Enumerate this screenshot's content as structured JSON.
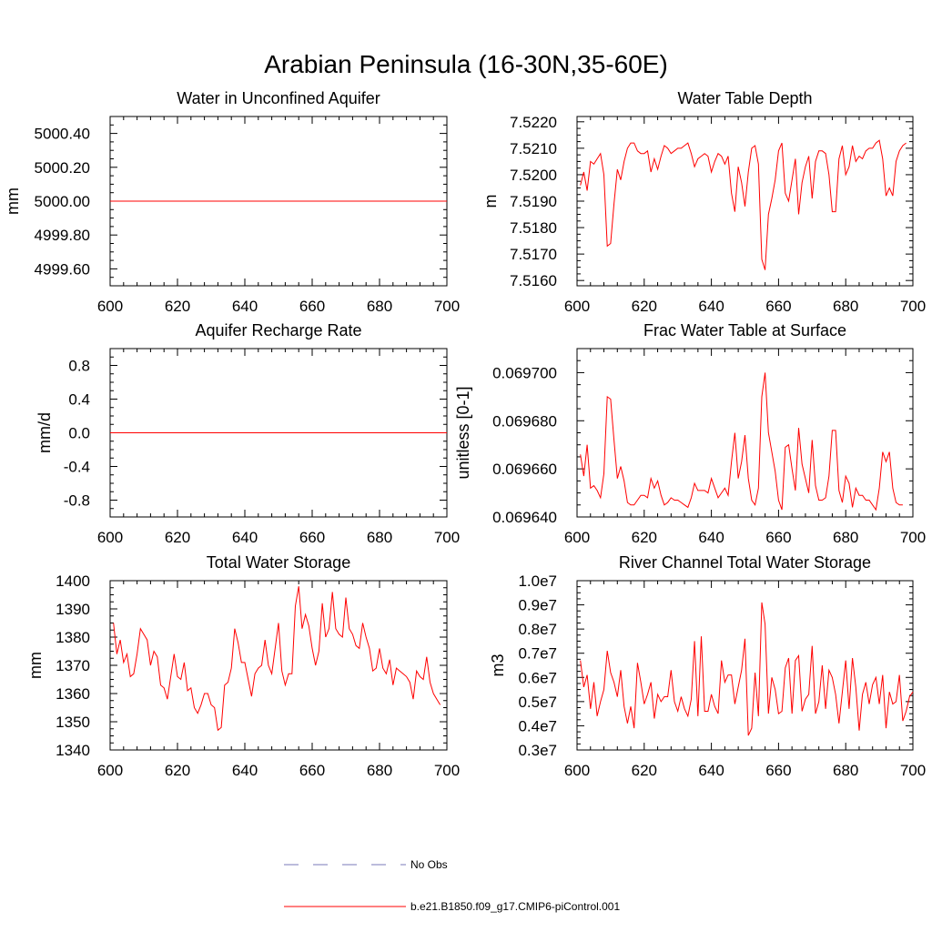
{
  "figure": {
    "title": "Arabian Peninsula (16-30N,35-60E)",
    "series_color": "#ff0000",
    "obs_color": "#7a7ab8"
  },
  "legend": {
    "items": [
      {
        "label": "No Obs",
        "style": "dashed",
        "color": "#7a7ab8"
      },
      {
        "label": "b.e21.B1850.f09_g17.CMIP6-piControl.001",
        "style": "solid",
        "color": "#ff0000"
      }
    ]
  },
  "chart_data": [
    {
      "type": "line",
      "title": "Water in Unconfined Aquifer",
      "xlabel": "",
      "ylabel": "mm",
      "xlim": [
        600,
        700
      ],
      "ylim": [
        4999.5,
        5000.5
      ],
      "xticks": [
        600,
        620,
        640,
        660,
        680,
        700
      ],
      "xtick_labels": [
        "600",
        "620",
        "640",
        "660",
        "680",
        "700"
      ],
      "yticks": [
        4999.6,
        4999.8,
        5000.0,
        5000.2,
        5000.4
      ],
      "ytick_labels": [
        "4999.60",
        "4999.80",
        "5000.00",
        "5000.20",
        "5000.40"
      ],
      "grid": false,
      "series": [
        {
          "name": "b.e21.B1850.f09_g17.CMIP6-piControl.001",
          "x": [
            600,
            700
          ],
          "values": [
            5000.0,
            5000.0
          ]
        }
      ]
    },
    {
      "type": "line",
      "title": "Water Table Depth",
      "xlabel": "",
      "ylabel": "m",
      "xlim": [
        600,
        700
      ],
      "ylim": [
        7.5158,
        7.5222
      ],
      "xticks": [
        600,
        620,
        640,
        660,
        680,
        700
      ],
      "xtick_labels": [
        "600",
        "620",
        "640",
        "660",
        "680",
        "700"
      ],
      "yticks": [
        7.516,
        7.517,
        7.518,
        7.519,
        7.52,
        7.521,
        7.522
      ],
      "ytick_labels": [
        "7.5160",
        "7.5170",
        "7.5180",
        "7.5190",
        "7.5200",
        "7.5210",
        "7.5220"
      ],
      "grid": false,
      "series": [
        {
          "name": "b.e21.B1850.f09_g17.CMIP6-piControl.001",
          "x0": 601,
          "dx": 1,
          "values": [
            7.5196,
            7.5201,
            7.5194,
            7.5205,
            7.5204,
            7.5206,
            7.5208,
            7.52,
            7.5173,
            7.5174,
            7.5189,
            7.5202,
            7.5198,
            7.5205,
            7.521,
            7.5212,
            7.5212,
            7.5209,
            7.5208,
            7.5208,
            7.5209,
            7.5201,
            7.5206,
            7.5202,
            7.5207,
            7.5211,
            7.521,
            7.5208,
            7.5209,
            7.521,
            7.521,
            7.5211,
            7.5212,
            7.5208,
            7.5203,
            7.5206,
            7.5207,
            7.5208,
            7.5207,
            7.5201,
            7.5205,
            7.5208,
            7.5207,
            7.5204,
            7.5207,
            7.5193,
            7.5186,
            7.5203,
            7.5197,
            7.5188,
            7.5201,
            7.521,
            7.5211,
            7.5204,
            7.5168,
            7.5164,
            7.5185,
            7.5191,
            7.5198,
            7.5209,
            7.5212,
            7.5193,
            7.519,
            7.5198,
            7.5206,
            7.5185,
            7.5197,
            7.5203,
            7.5207,
            7.5191,
            7.5205,
            7.5209,
            7.5209,
            7.5208,
            7.52,
            7.5186,
            7.5186,
            7.5206,
            7.5211,
            7.52,
            7.5203,
            7.5211,
            7.5205,
            7.5207,
            7.5206,
            7.5209,
            7.521,
            7.521,
            7.5212,
            7.5213,
            7.5206,
            7.5192,
            7.5195,
            7.5192,
            7.5205,
            7.5209,
            7.5211,
            7.5212
          ]
        }
      ]
    },
    {
      "type": "line",
      "title": "Aquifer Recharge Rate",
      "xlabel": "",
      "ylabel": "mm/d",
      "xlim": [
        600,
        700
      ],
      "ylim": [
        -1.0,
        1.0
      ],
      "xticks": [
        600,
        620,
        640,
        660,
        680,
        700
      ],
      "xtick_labels": [
        "600",
        "620",
        "640",
        "660",
        "680",
        "700"
      ],
      "yticks": [
        -0.8,
        -0.4,
        0.0,
        0.4,
        0.8
      ],
      "ytick_labels": [
        "-0.8",
        "-0.4",
        "0.0",
        "0.4",
        "0.8"
      ],
      "grid": false,
      "series": [
        {
          "name": "b.e21.B1850.f09_g17.CMIP6-piControl.001",
          "x": [
            600,
            700
          ],
          "values": [
            0.0,
            0.0
          ]
        }
      ]
    },
    {
      "type": "line",
      "title": "Frac Water Table at Surface",
      "xlabel": "",
      "ylabel": "unitless [0-1]",
      "xlim": [
        600,
        700
      ],
      "ylim": [
        0.06964,
        0.06971
      ],
      "xticks": [
        600,
        620,
        640,
        660,
        680,
        700
      ],
      "xtick_labels": [
        "600",
        "620",
        "640",
        "660",
        "680",
        "700"
      ],
      "yticks": [
        0.0697,
        0.06968,
        0.06966,
        0.06964
      ],
      "ytick_labels": [
        "0.069700",
        "0.069680",
        "0.069660",
        "0.069640"
      ],
      "grid": false,
      "series": [
        {
          "name": "b.e21.B1850.f09_g17.CMIP6-piControl.001",
          "x0": 601,
          "dx": 1,
          "values": [
            0.069666,
            0.069657,
            0.06967,
            0.069652,
            0.069653,
            0.069651,
            0.069648,
            0.069658,
            0.06969,
            0.069689,
            0.069672,
            0.069656,
            0.069661,
            0.069655,
            0.069646,
            0.069645,
            0.069645,
            0.069647,
            0.069649,
            0.069649,
            0.069648,
            0.069656,
            0.069652,
            0.069655,
            0.069649,
            0.069645,
            0.069646,
            0.069648,
            0.069647,
            0.069647,
            0.069646,
            0.069645,
            0.069644,
            0.069648,
            0.069654,
            0.069651,
            0.069651,
            0.069651,
            0.06965,
            0.069656,
            0.069652,
            0.069648,
            0.06965,
            0.069652,
            0.069649,
            0.069663,
            0.069675,
            0.069656,
            0.069663,
            0.069674,
            0.069656,
            0.069647,
            0.069645,
            0.069652,
            0.06969,
            0.0697,
            0.069675,
            0.069667,
            0.069659,
            0.069647,
            0.069643,
            0.069669,
            0.06967,
            0.06966,
            0.069651,
            0.069677,
            0.069662,
            0.069656,
            0.06965,
            0.069672,
            0.069653,
            0.069647,
            0.069647,
            0.069648,
            0.069657,
            0.069676,
            0.069676,
            0.069651,
            0.069646,
            0.069657,
            0.069654,
            0.069644,
            0.069652,
            0.069649,
            0.069649,
            0.069647,
            0.069647,
            0.069645,
            0.069643,
            0.069652,
            0.069667,
            0.069663,
            0.069667,
            0.069652,
            0.069646,
            0.069645,
            0.069645
          ]
        }
      ]
    },
    {
      "type": "line",
      "title": "Total Water Storage",
      "xlabel": "",
      "ylabel": "mm",
      "xlim": [
        600,
        700
      ],
      "ylim": [
        1340,
        1400
      ],
      "xticks": [
        600,
        620,
        640,
        660,
        680,
        700
      ],
      "xtick_labels": [
        "600",
        "620",
        "640",
        "660",
        "680",
        "700"
      ],
      "yticks": [
        1340,
        1350,
        1360,
        1370,
        1380,
        1390,
        1400
      ],
      "ytick_labels": [
        "1340",
        "1350",
        "1360",
        "1370",
        "1380",
        "1390",
        "1400"
      ],
      "grid": false,
      "series": [
        {
          "name": "b.e21.B1850.f09_g17.CMIP6-piControl.001",
          "x0": 601,
          "dx": 1,
          "values": [
            1385,
            1374,
            1379,
            1371,
            1374,
            1366,
            1367,
            1374,
            1383,
            1381,
            1379,
            1370,
            1375,
            1373,
            1363,
            1362,
            1358,
            1366,
            1374,
            1366,
            1365,
            1371,
            1361,
            1362,
            1355,
            1353,
            1356,
            1360,
            1360,
            1356,
            1355,
            1347,
            1348,
            1363,
            1364,
            1369,
            1383,
            1378,
            1371,
            1371,
            1365,
            1359,
            1367,
            1369,
            1370,
            1379,
            1370,
            1367,
            1376,
            1385,
            1368,
            1363,
            1367,
            1367,
            1391,
            1398,
            1383,
            1388,
            1384,
            1376,
            1370,
            1375,
            1392,
            1380,
            1383,
            1396,
            1383,
            1381,
            1380,
            1394,
            1383,
            1381,
            1377,
            1376,
            1385,
            1380,
            1376,
            1368,
            1369,
            1376,
            1369,
            1367,
            1372,
            1363,
            1369,
            1368,
            1367,
            1366,
            1364,
            1358,
            1368,
            1366,
            1365,
            1373,
            1364,
            1360,
            1358,
            1356
          ]
        }
      ]
    },
    {
      "type": "line",
      "title": "River Channel Total Water Storage",
      "xlabel": "",
      "ylabel": "m3",
      "xlim": [
        600,
        700
      ],
      "ylim": [
        3000000,
        10000000
      ],
      "xticks": [
        600,
        620,
        640,
        660,
        680,
        700
      ],
      "xtick_labels": [
        "600",
        "620",
        "640",
        "660",
        "680",
        "700"
      ],
      "yticks": [
        3000000,
        4000000,
        5000000,
        6000000,
        7000000,
        8000000,
        9000000,
        10000000
      ],
      "ytick_labels": [
        "0.3e7",
        "0.4e7",
        "0.5e7",
        "0.6e7",
        "0.7e7",
        "0.8e7",
        "0.9e7",
        "1.0e7"
      ],
      "grid": false,
      "series": [
        {
          "name": "b.e21.B1850.f09_g17.CMIP6-piControl.001",
          "x0": 601,
          "dx": 1,
          "values": [
            6700000,
            5600000,
            6100000,
            4700000,
            5800000,
            4400000,
            5000000,
            5500000,
            7100000,
            6200000,
            5800000,
            5200000,
            6300000,
            4800000,
            4100000,
            4800000,
            3900000,
            6600000,
            5800000,
            4900000,
            5300000,
            5800000,
            4300000,
            5300000,
            5000000,
            5200000,
            5200000,
            6300000,
            5000000,
            4600000,
            5200000,
            4700000,
            4400000,
            5100000,
            7500000,
            4400000,
            7700000,
            4600000,
            4600000,
            5300000,
            4800000,
            4500000,
            6700000,
            5800000,
            6100000,
            6100000,
            4900000,
            5600000,
            6300000,
            7600000,
            3600000,
            3900000,
            6200000,
            4400000,
            9100000,
            8200000,
            4500000,
            6000000,
            5500000,
            4500000,
            4600000,
            6400000,
            6800000,
            4500000,
            6700000,
            6900000,
            4600000,
            5100000,
            5300000,
            7300000,
            4500000,
            5000000,
            6500000,
            4700000,
            6300000,
            6000000,
            5300000,
            4100000,
            5400000,
            6700000,
            4700000,
            6800000,
            5600000,
            3800000,
            5300000,
            5800000,
            4900000,
            5700000,
            6000000,
            4900000,
            6100000,
            3900000,
            5400000,
            4900000,
            5000000,
            6100000,
            4200000,
            4600000,
            5200000,
            5400000
          ]
        }
      ]
    }
  ]
}
